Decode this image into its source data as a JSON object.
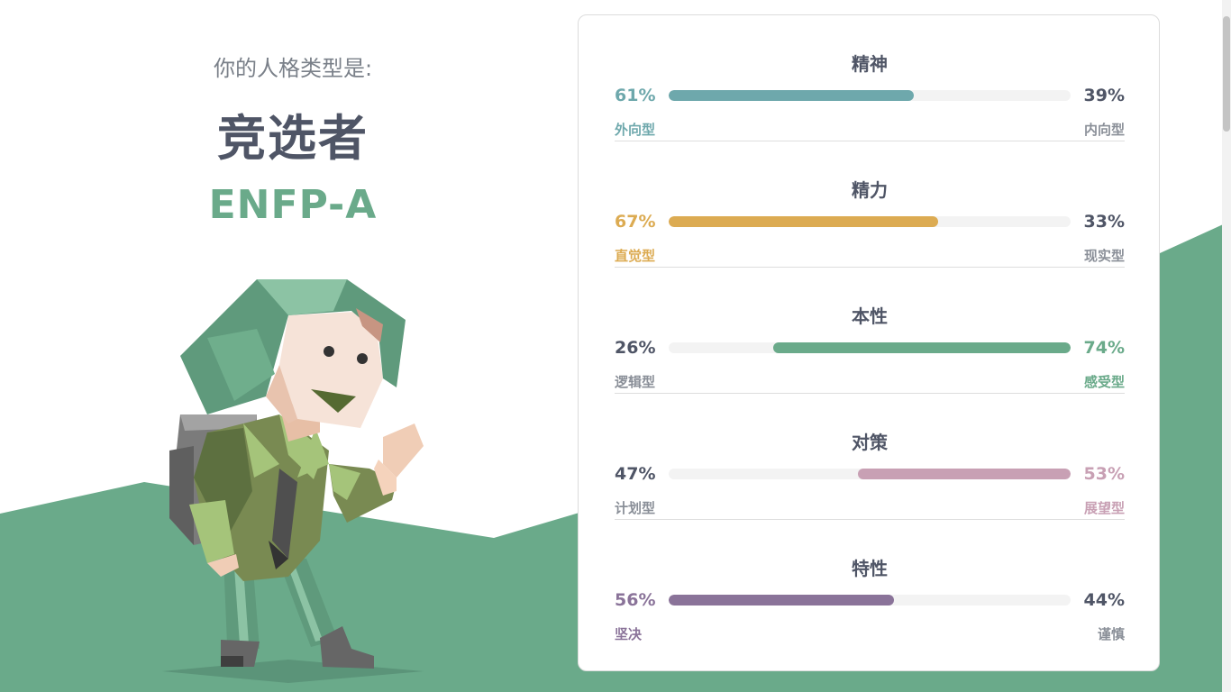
{
  "result": {
    "subtitle": "你的人格类型是:",
    "type_name": "竞选者",
    "type_code": "ENFP-A"
  },
  "colors": {
    "hill": "#6aaa8a",
    "mind": "#6ea8ac",
    "energy": "#dcab52",
    "nature": "#6aaa8a",
    "tactics": "#c8a0b4",
    "identity": "#8a7399",
    "neutral": "#4f5566",
    "muted": "#8a8f98"
  },
  "traits": [
    {
      "title": "精神",
      "left_pct": "61%",
      "right_pct": "39%",
      "left_label": "外向型",
      "right_label": "内向型",
      "dominant": "left",
      "value": 0.61,
      "color": "#6ea8ac"
    },
    {
      "title": "精力",
      "left_pct": "67%",
      "right_pct": "33%",
      "left_label": "直觉型",
      "right_label": "现实型",
      "dominant": "left",
      "value": 0.67,
      "color": "#dcab52"
    },
    {
      "title": "本性",
      "left_pct": "26%",
      "right_pct": "74%",
      "left_label": "逻辑型",
      "right_label": "感受型",
      "dominant": "right",
      "value": 0.74,
      "color": "#6aaa8a"
    },
    {
      "title": "对策",
      "left_pct": "47%",
      "right_pct": "53%",
      "left_label": "计划型",
      "right_label": "展望型",
      "dominant": "right",
      "value": 0.53,
      "color": "#c8a0b4"
    },
    {
      "title": "特性",
      "left_pct": "56%",
      "right_pct": "44%",
      "left_label": "坚决",
      "right_label": "谨慎",
      "dominant": "left",
      "value": 0.56,
      "color": "#8a7399"
    }
  ]
}
